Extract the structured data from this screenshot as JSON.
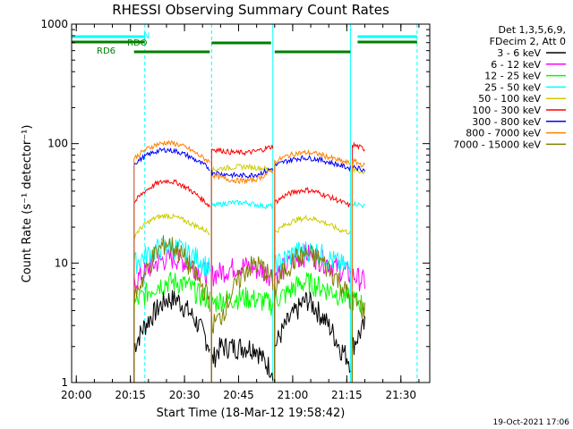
{
  "chart_data": {
    "type": "line",
    "title": "RHESSI Observing Summary Count Rates",
    "xlabel": "Start Time (18-Mar-12 19:58:42)",
    "ylabel": "Count Rate (s⁻¹ detector⁻¹)",
    "yscale": "log",
    "ylim": [
      1,
      1000
    ],
    "xlim": [
      "19:58:42",
      "21:38:00"
    ],
    "x_ticks": [
      "20:00",
      "20:15",
      "20:30",
      "20:45",
      "21:00",
      "21:15",
      "21:30"
    ],
    "y_ticks": [
      "1",
      "10",
      "100",
      "1000"
    ],
    "legend_header": [
      "Det 1,3,5,6,9,",
      "FDecim 2, Att 0"
    ],
    "legend_position": "right",
    "footer_date": "19-Oct-2021 17:06",
    "status_bars": [
      {
        "label": "N",
        "color": "#00ffff",
        "segments": [
          [
            "19:58:42",
            "20:19:00"
          ],
          [
            "21:18:00",
            "21:34:30"
          ]
        ]
      },
      {
        "label": "RDO",
        "color": "#007f00",
        "segments": [
          [
            "19:58:42",
            "20:19:00"
          ],
          [
            "21:18:00",
            "21:34:30"
          ]
        ]
      },
      {
        "label": "RD6",
        "color": "#007f00",
        "segments": [
          [
            "20:16:00",
            "20:37:00"
          ],
          [
            "20:55:00",
            "21:16:00"
          ]
        ]
      },
      {
        "label": "",
        "color": "#007f00",
        "segments": [
          [
            "20:37:30",
            "20:54:00"
          ]
        ]
      }
    ],
    "vertical_markers": [
      {
        "time": "20:19:00",
        "style": "dashed",
        "color": "#00ffff"
      },
      {
        "time": "20:37:30",
        "style": "dashed",
        "color": "#00ffff"
      },
      {
        "time": "20:54:30",
        "style": "solid",
        "color": "#00ffff"
      },
      {
        "time": "21:16:00",
        "style": "solid",
        "color": "#00ffff"
      },
      {
        "time": "21:34:30",
        "style": "dashed",
        "color": "#00ffff"
      },
      {
        "time": "19:58:42",
        "style": "solid",
        "color": "#00ffff"
      }
    ],
    "series": [
      {
        "name": "3 - 6 keV",
        "color": "#000000",
        "values": {
          "seg1": [
            2,
            3,
            4,
            5,
            5,
            4,
            3,
            2
          ],
          "seg2": [
            1.5,
            2,
            2,
            2,
            2,
            2,
            1.5,
            1.3
          ],
          "seg3": [
            2,
            3,
            4,
            5,
            4,
            3,
            2,
            1.5
          ],
          "seg4": [
            2,
            3
          ]
        }
      },
      {
        "name": "6 - 12 keV",
        "color": "#ff00ff",
        "values": {
          "seg1": [
            7,
            8.5,
            10,
            11,
            11,
            10,
            9,
            8
          ],
          "seg2": [
            8,
            8.5,
            9,
            9.5,
            9.5,
            9,
            8.5,
            8
          ],
          "seg3": [
            8,
            9.5,
            11,
            12,
            11,
            10,
            9,
            8
          ],
          "seg4": [
            8,
            7
          ]
        }
      },
      {
        "name": "12 - 25 keV",
        "color": "#00ff00",
        "values": {
          "seg1": [
            4.5,
            5.5,
            6.5,
            7,
            7,
            6.5,
            5.5,
            5
          ],
          "seg2": [
            4.5,
            5,
            5,
            5.2,
            5.2,
            5,
            4.8,
            4.5
          ],
          "seg3": [
            5,
            5.5,
            6.5,
            7,
            6.5,
            6,
            5.5,
            5
          ],
          "seg4": [
            5,
            4.5
          ]
        }
      },
      {
        "name": "25 - 50 keV",
        "color": "#00ffff",
        "values": {
          "seg1": [
            10,
            11.5,
            13,
            14,
            13.5,
            12,
            11,
            9
          ],
          "seg2": [
            30,
            31,
            32,
            32,
            32,
            31,
            30,
            30
          ],
          "seg3": [
            9.5,
            11,
            12.5,
            13,
            12.5,
            11,
            10,
            9
          ],
          "seg4": [
            32,
            30
          ]
        }
      },
      {
        "name": "50 - 100 keV",
        "color": "#cccc00",
        "values": {
          "seg1": [
            17,
            21,
            24,
            25,
            24,
            22,
            20,
            18
          ],
          "seg2": [
            60,
            62,
            63,
            64,
            64,
            63,
            62,
            60
          ],
          "seg3": [
            18,
            21,
            23,
            24,
            23,
            21,
            19,
            18
          ],
          "seg4": [
            60,
            58
          ]
        }
      },
      {
        "name": "100 - 300 keV",
        "color": "#ff0000",
        "values": {
          "seg1": [
            32,
            40,
            46,
            49,
            47,
            42,
            36,
            30
          ],
          "seg2": [
            90,
            88,
            85,
            84,
            84,
            86,
            90,
            95
          ],
          "seg3": [
            32,
            37,
            40,
            41,
            39,
            36,
            33,
            30
          ],
          "seg4": [
            98,
            90
          ]
        }
      },
      {
        "name": "300 - 800 keV",
        "color": "#0000ff",
        "values": {
          "seg1": [
            68,
            78,
            86,
            89,
            86,
            79,
            70,
            62
          ],
          "seg2": [
            58,
            56,
            55,
            54,
            54,
            55,
            58,
            62
          ],
          "seg3": [
            65,
            71,
            75,
            76,
            74,
            70,
            66,
            62
          ],
          "seg4": [
            65,
            60
          ]
        }
      },
      {
        "name": "800 - 7000 keV",
        "color": "#ff8000",
        "values": {
          "seg1": [
            75,
            88,
            98,
            102,
            99,
            91,
            80,
            70
          ],
          "seg2": [
            55,
            52,
            50,
            49,
            49,
            50,
            54,
            60
          ],
          "seg3": [
            70,
            78,
            83,
            84,
            82,
            77,
            72,
            68
          ],
          "seg4": [
            72,
            65
          ]
        }
      },
      {
        "name": "7000 - 15000 keV",
        "color": "#808000",
        "values": {
          "seg1": [
            5,
            8,
            12,
            15,
            13,
            10,
            7,
            5
          ],
          "seg2": [
            3,
            3.5,
            5,
            7,
            9,
            10,
            9,
            7
          ],
          "seg3": [
            6,
            9,
            11,
            12,
            11,
            9,
            7,
            5
          ],
          "seg4": [
            5,
            4
          ]
        }
      }
    ],
    "segments": [
      {
        "start": "20:16:00",
        "end": "20:37:00",
        "key": "seg1"
      },
      {
        "start": "20:37:30",
        "end": "20:54:30",
        "key": "seg2"
      },
      {
        "start": "20:55:00",
        "end": "21:16:00",
        "key": "seg3"
      },
      {
        "start": "21:16:30",
        "end": "21:20:00",
        "key": "seg4"
      }
    ],
    "grid": false
  }
}
